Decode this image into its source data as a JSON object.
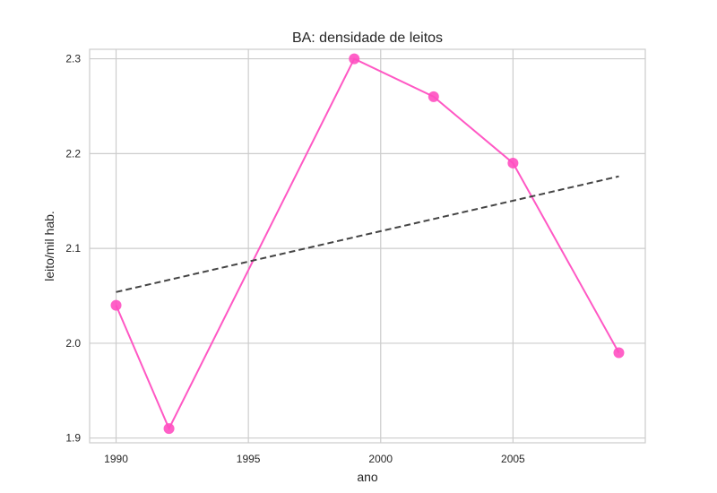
{
  "chart_data": {
    "type": "line",
    "title": "BA: densidade de leitos",
    "xlabel": "ano",
    "ylabel": "leito/mil hab.",
    "xlim": [
      1989,
      2010
    ],
    "ylim": [
      1.895,
      2.31
    ],
    "xticks": [
      1990,
      1995,
      2000,
      2005
    ],
    "yticks": [
      1.9,
      2.0,
      2.1,
      2.2,
      2.3
    ],
    "ytick_labels": [
      "1.9",
      "2.0",
      "2.1",
      "2.2",
      "2.3"
    ],
    "grid": true,
    "series": [
      {
        "kind": "line-markers",
        "color": "#ff4fc1",
        "x": [
          1990,
          1992,
          1999,
          2002,
          2005,
          2009
        ],
        "y": [
          2.04,
          1.91,
          2.3,
          2.26,
          2.19,
          1.99
        ]
      },
      {
        "kind": "trend-dashed",
        "color": "#444444",
        "x": [
          1990,
          2009
        ],
        "y": [
          2.054,
          2.176
        ]
      }
    ]
  }
}
